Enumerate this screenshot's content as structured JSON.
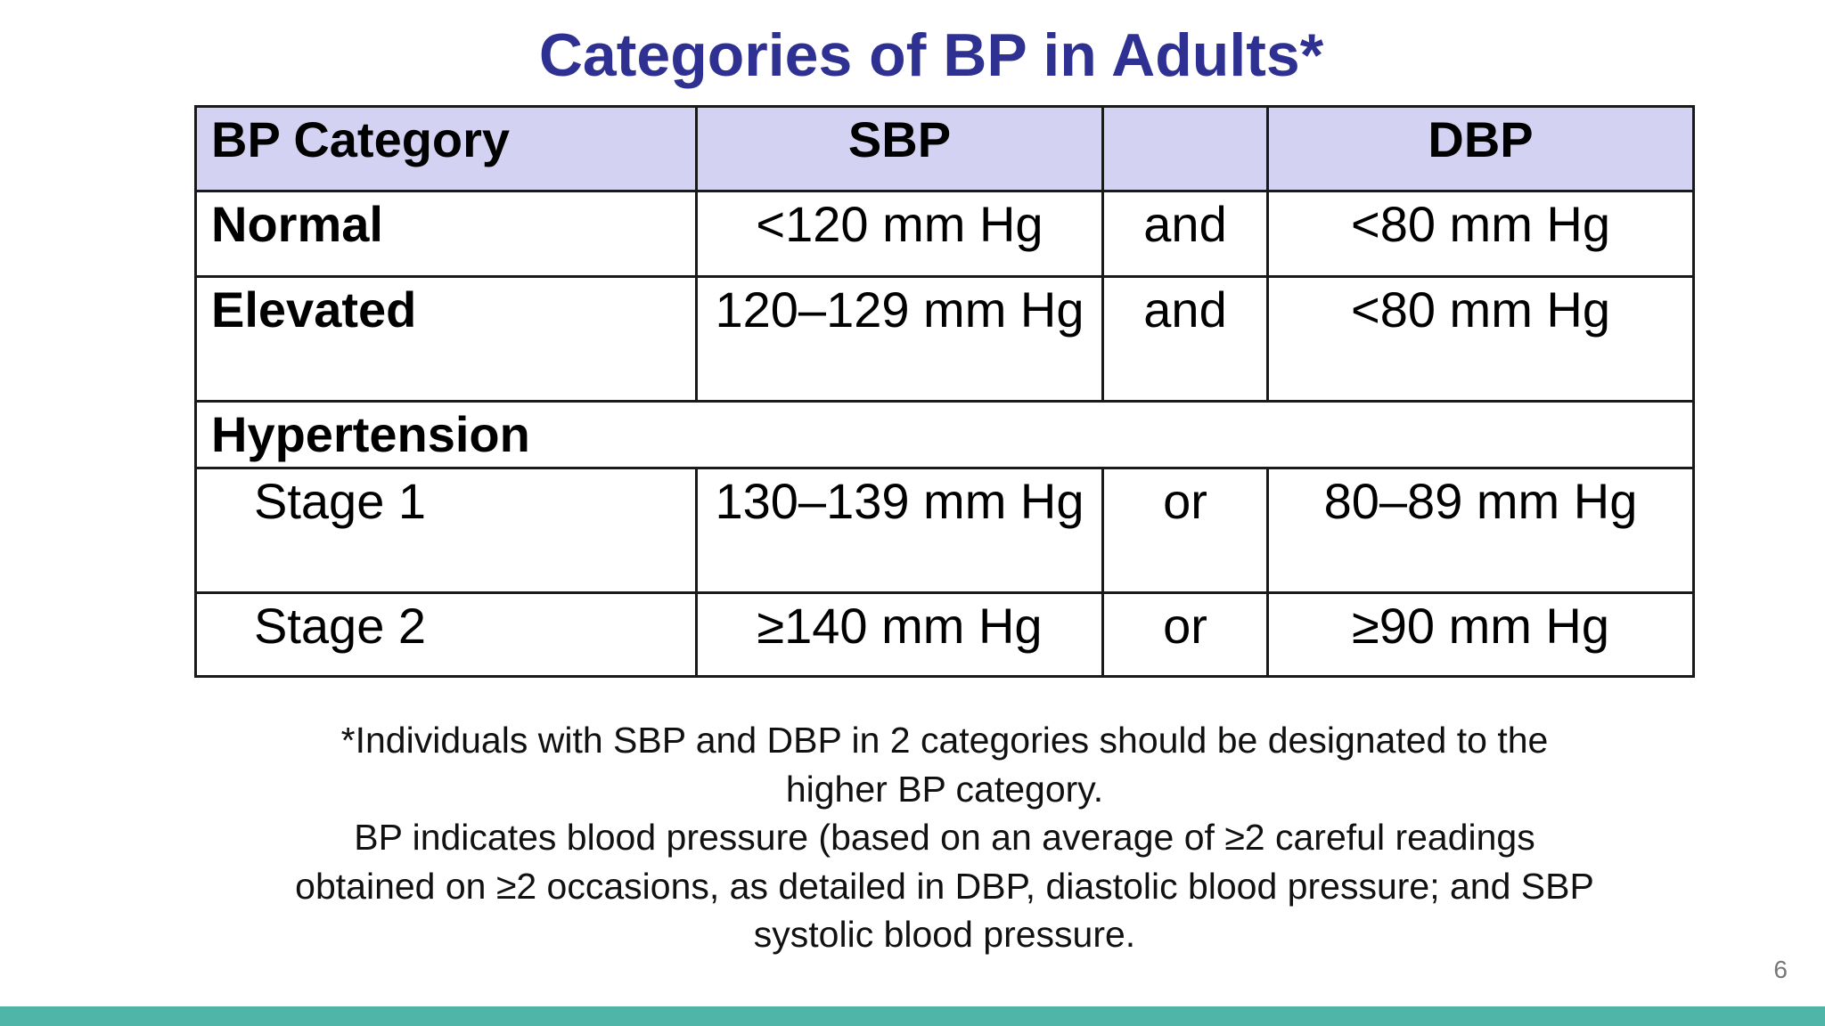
{
  "title": "Categories of BP in Adults*",
  "table": {
    "header": [
      "BP Category",
      "SBP",
      "",
      "DBP"
    ],
    "rows": [
      {
        "category": "Normal",
        "sbp": "<120 mm Hg",
        "conj": "and",
        "dbp": "<80 mm Hg"
      },
      {
        "category": "Elevated",
        "sbp": "120–129 mm Hg",
        "conj": "and",
        "dbp": "<80 mm Hg"
      },
      {
        "category": "Hypertension"
      },
      {
        "category": "Stage 1",
        "sbp": "130–139 mm Hg",
        "conj": "or",
        "dbp": "80–89 mm Hg"
      },
      {
        "category": "Stage 2",
        "sbp": "≥140 mm Hg",
        "conj": "or",
        "dbp": "≥90 mm Hg"
      }
    ]
  },
  "footnote": {
    "line1": "*Individuals with SBP and DBP in 2 categories should be designated to the",
    "line2": "higher BP category.",
    "line3": "BP indicates blood pressure (based on an average of ≥2 careful readings",
    "line4": "obtained on ≥2 occasions, as detailed in DBP, diastolic blood pressure; and SBP",
    "line5": "systolic blood pressure."
  },
  "page_number": "6",
  "colors": {
    "title": "#2e3192",
    "header_bg": "#d4d2f2",
    "bottom_bar": "#4fb5a8"
  }
}
